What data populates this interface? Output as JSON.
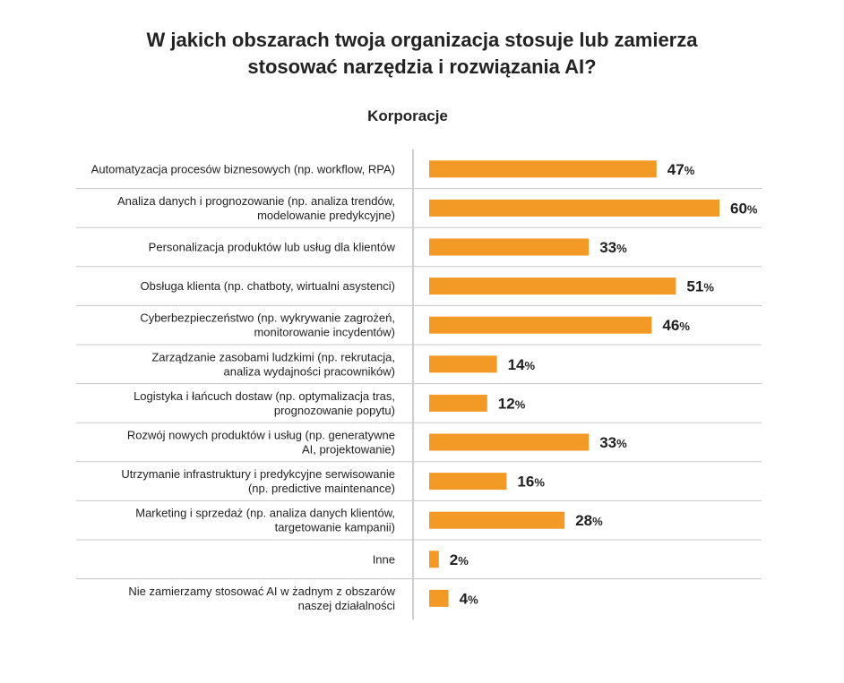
{
  "title_lines": [
    "W jakich obszarach twoja organizacja stosuje lub zamierza",
    "stosować narzędzia i rozwiązania AI?"
  ],
  "subtitle": "Korporacje",
  "colors": {
    "bar": "#f29a25",
    "grid": "#c8c8c8",
    "axis": "#9e9e9e",
    "text": "#1f1f1f"
  },
  "chart_data": {
    "type": "bar",
    "orientation": "horizontal",
    "title": "W jakich obszarach twoja organizacja stosuje lub zamierza stosować narzędzia i rozwiązania AI?",
    "subtitle": "Korporacje",
    "unit": "%",
    "xlim": [
      0,
      60
    ],
    "grid": false,
    "categories": [
      [
        "Automatyzacja procesów biznesowych (np. workflow, RPA)"
      ],
      [
        "Analiza danych i prognozowanie (np. analiza trendów,",
        "modelowanie predykcyjne)"
      ],
      [
        "Personalizacja produktów lub usług dla klientów"
      ],
      [
        "Obsługa klienta (np. chatboty, wirtualni asystenci)"
      ],
      [
        "Cyberbezpieczeństwo (np. wykrywanie zagrożeń,",
        "monitorowanie incydentów)"
      ],
      [
        "Zarządzanie zasobami ludzkimi (np. rekrutacja,",
        "analiza wydajności pracowników)"
      ],
      [
        "Logistyka i łańcuch dostaw (np. optymalizacja tras,",
        "prognozowanie popytu)"
      ],
      [
        "Rozwój nowych produktów i usług (np. generatywne",
        "AI, projektowanie)"
      ],
      [
        "Utrzymanie infrastruktury i predykcyjne serwisowanie",
        "(np. predictive maintenance)"
      ],
      [
        "Marketing i sprzedaż (np. analiza danych klientów,",
        "targetowanie kampanii)"
      ],
      [
        "Inne"
      ],
      [
        "Nie zamierzamy stosować AI w żadnym z obszarów",
        "naszej działalności"
      ]
    ],
    "values": [
      47,
      60,
      33,
      51,
      46,
      14,
      12,
      33,
      16,
      28,
      2,
      4
    ]
  }
}
